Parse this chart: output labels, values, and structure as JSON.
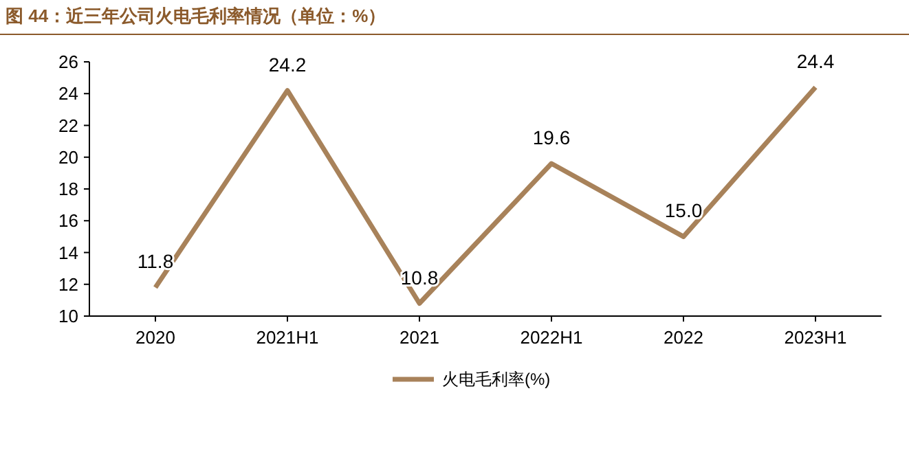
{
  "chart_data": {
    "type": "line",
    "title": "图 44：近三年公司火电毛利率情况（单位：%）",
    "categories": [
      "2020",
      "2021H1",
      "2021",
      "2022H1",
      "2022",
      "2023H1"
    ],
    "series": [
      {
        "name": "火电毛利率(%)",
        "color": "#a8825a",
        "values": [
          11.8,
          24.2,
          10.8,
          19.6,
          15.0,
          24.4
        ],
        "value_labels": [
          "11.8",
          "24.2",
          "10.8",
          "19.6",
          "15.0",
          "24.4"
        ]
      }
    ],
    "ylim": [
      10,
      26
    ],
    "yticks": [
      10,
      12,
      14,
      16,
      18,
      20,
      22,
      24,
      26
    ],
    "legend": "bottom",
    "marker": "none",
    "line_style": "solid"
  }
}
